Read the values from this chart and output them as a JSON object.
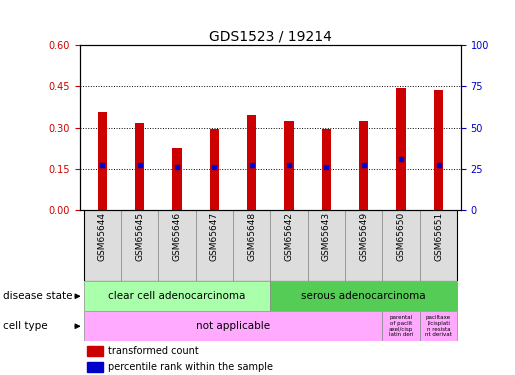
{
  "title": "GDS1523 / 19214",
  "samples": [
    "GSM65644",
    "GSM65645",
    "GSM65646",
    "GSM65647",
    "GSM65648",
    "GSM65642",
    "GSM65643",
    "GSM65649",
    "GSM65650",
    "GSM65651"
  ],
  "transformed_counts": [
    0.355,
    0.315,
    0.225,
    0.295,
    0.345,
    0.325,
    0.295,
    0.325,
    0.445,
    0.435
  ],
  "percentile_ranks_left": [
    0.165,
    0.165,
    0.155,
    0.155,
    0.165,
    0.165,
    0.155,
    0.165,
    0.185,
    0.165
  ],
  "ylim_left": [
    0,
    0.6
  ],
  "ylim_right": [
    0,
    100
  ],
  "yticks_left": [
    0,
    0.15,
    0.3,
    0.45,
    0.6
  ],
  "yticks_right": [
    0,
    25,
    50,
    75,
    100
  ],
  "bar_color": "#cc0000",
  "dot_color": "#0000cc",
  "bar_width": 0.25,
  "sample_bg_color": "#dddddd",
  "disease_regions": [
    {
      "label": "clear cell adenocarcinoma",
      "xstart": -0.5,
      "xend": 4.5,
      "color": "#aaffaa"
    },
    {
      "label": "serous adenocarcinoma",
      "xstart": 4.5,
      "xend": 9.5,
      "color": "#55cc55"
    }
  ],
  "cell_type_main": {
    "label": "not applicable",
    "xstart": -0.5,
    "xend": 7.5,
    "color": "#ffaaff"
  },
  "cell_type_extra": [
    {
      "label": "parental\nof paclit\naxel/cisp\nlatin deri",
      "xstart": 7.5,
      "xend": 8.5,
      "color": "#ffaaff"
    },
    {
      "label": "paciltaxe\nl/cisplati\nn resista\nnt derivat",
      "xstart": 8.5,
      "xend": 9.5,
      "color": "#ffaaff"
    }
  ],
  "legend_items": [
    {
      "label": "transformed count",
      "color": "#cc0000"
    },
    {
      "label": "percentile rank within the sample",
      "color": "#0000cc"
    }
  ],
  "title_fontsize": 10,
  "tick_fontsize": 7,
  "sample_fontsize": 6.5,
  "annot_fontsize": 7.5,
  "row_label_fontsize": 7.5,
  "legend_fontsize": 7
}
